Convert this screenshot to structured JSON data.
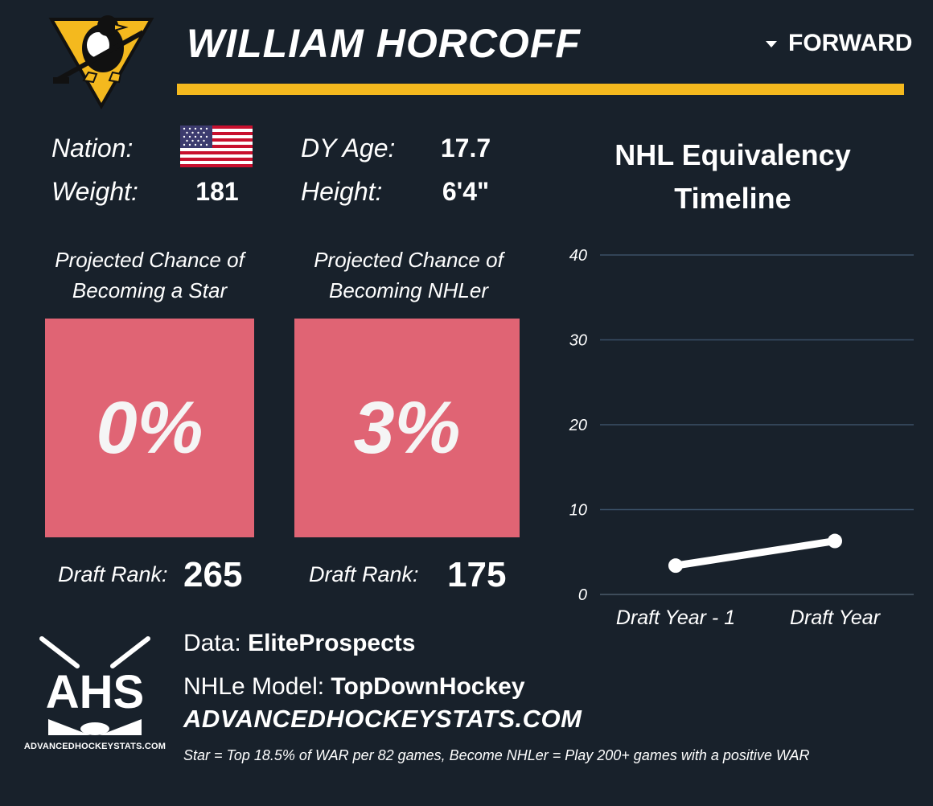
{
  "header": {
    "player_name": "WILLIAM HORCOFF",
    "position": "FORWARD",
    "team_logo_icon": "penguins-logo-icon"
  },
  "colors": {
    "background": "#18212b",
    "accent_gold": "#f4b91e",
    "chance_box": "#e06474",
    "gridline": "#3a5066"
  },
  "bio": {
    "nation_label": "Nation:",
    "nation_flag_icon": "usa-flag-icon",
    "weight_label": "Weight:",
    "weight_value": "181",
    "age_label": "DY Age:",
    "age_value": "17.7",
    "height_label": "Height:",
    "height_value": "6'4\""
  },
  "star": {
    "title_line1": "Projected Chance of",
    "title_line2": "Becoming a Star",
    "value": "0%",
    "rank_label": "Draft Rank:",
    "rank_value": "265"
  },
  "nhler": {
    "title_line1": "Projected Chance of",
    "title_line2": "Becoming NHLer",
    "value": "3%",
    "rank_label": "Draft Rank:",
    "rank_value": "175"
  },
  "chart_title": {
    "line1": "NHL Equivalency",
    "line2": "Timeline"
  },
  "chart_data": {
    "type": "line",
    "title": "NHL Equivalency Timeline",
    "categories": [
      "Draft Year - 1",
      "Draft Year"
    ],
    "values": [
      3.4,
      6.3
    ],
    "yticks": [
      "0",
      "10",
      "20",
      "30",
      "40"
    ],
    "ylim": [
      0,
      40
    ],
    "grid": true
  },
  "footer": {
    "ahs_logo_text": "AHS",
    "ahs_caption": "ADVANCEDHOCKEYSTATS.COM",
    "data_label": "Data:",
    "data_source": "EliteProspects",
    "model_label": "NHLe Model:",
    "model_source": "TopDownHockey",
    "site_url": "ADVANCEDHOCKEYSTATS.COM",
    "footnote": "Star = Top 18.5% of WAR per 82 games, Become NHLer = Play 200+ games with a positive WAR"
  }
}
